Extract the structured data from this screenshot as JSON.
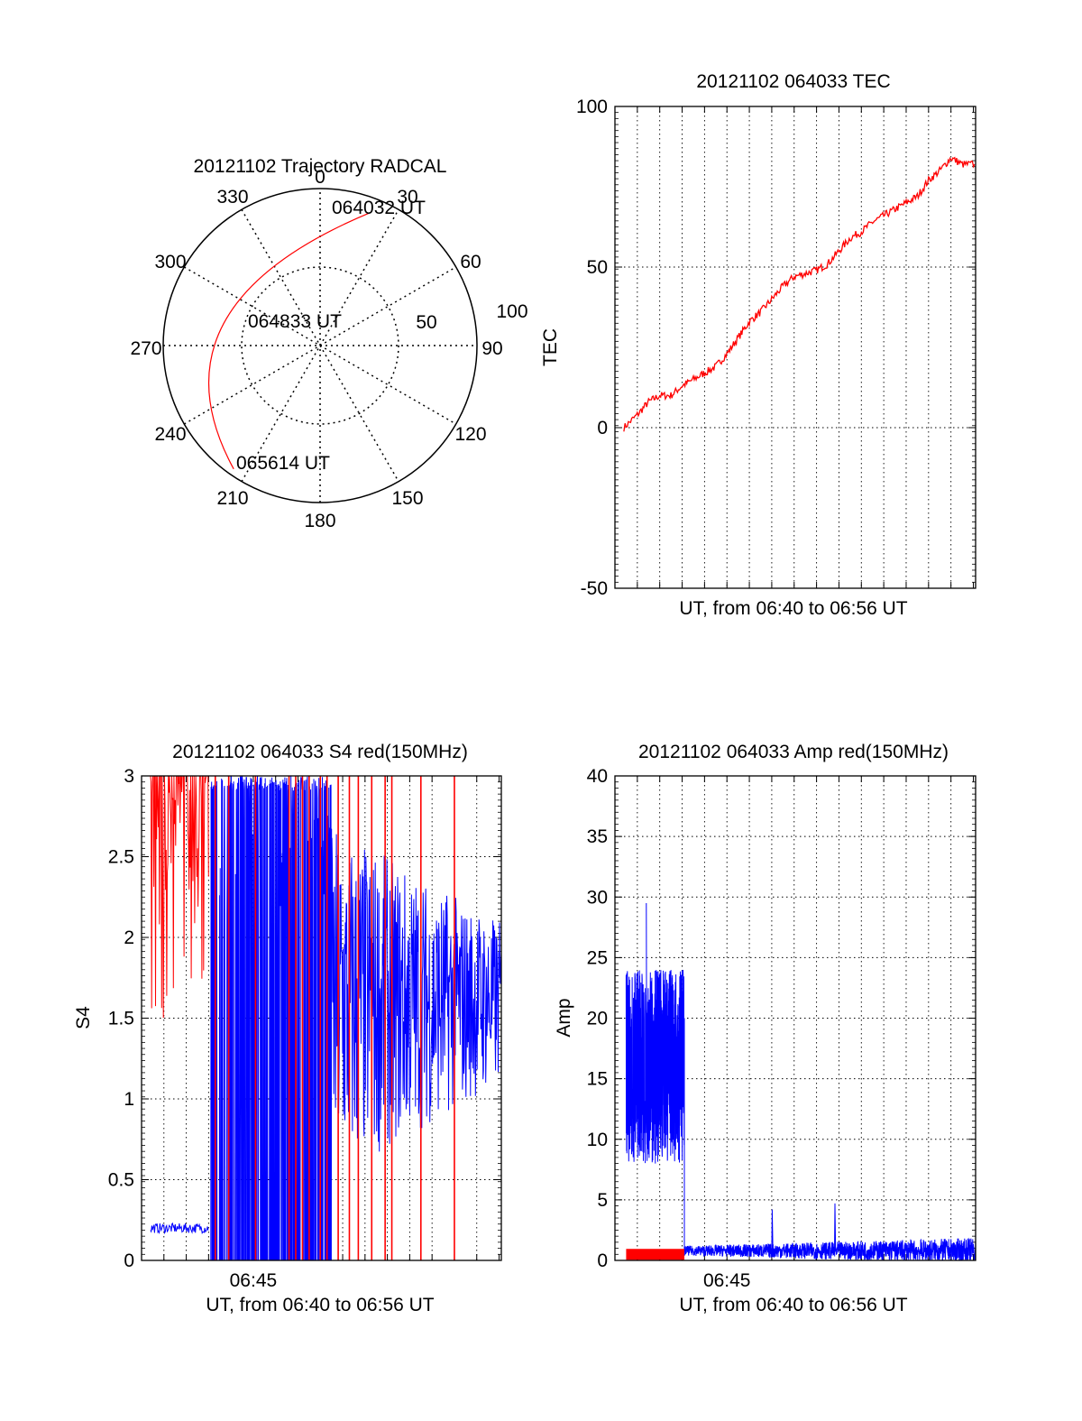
{
  "colors": {
    "red": "#ff0000",
    "blue": "#0000ff",
    "axis": "#000000",
    "grid": "#000000"
  },
  "chart_data": [
    {
      "id": "trajectory",
      "type": "polar",
      "title": "20121102 Trajectory RADCAL",
      "angle_labels": [
        "0",
        "30",
        "60",
        "90",
        "120",
        "150",
        "180",
        "210",
        "240",
        "270",
        "300",
        "330"
      ],
      "radial_labels": [
        "50",
        "100"
      ],
      "radial_max": 100,
      "track": {
        "az_start": 21,
        "r_start": 91,
        "az_end": 215,
        "r_end": 96,
        "az_mid": 283,
        "r_mid": 63
      },
      "annotations": [
        "064032 UT",
        "064833 UT",
        "065614 UT"
      ]
    },
    {
      "id": "tec",
      "type": "line",
      "title": "20121102 064033 TEC",
      "xlabel": "UT, from 06:40 to 06:56 UT",
      "ylabel": "TEC",
      "xlim": [
        0,
        16.1
      ],
      "ylim": [
        -50,
        100
      ],
      "yticks": [
        "-50",
        "0",
        "50",
        "100"
      ],
      "grid": true,
      "series": [
        {
          "color": "red",
          "points": [
            [
              0.4,
              0
            ],
            [
              1,
              4
            ],
            [
              1.5,
              8
            ],
            [
              2,
              10
            ],
            [
              2.5,
              10
            ],
            [
              3,
              13
            ],
            [
              3.5,
              15
            ],
            [
              4,
              17
            ],
            [
              4.5,
              19
            ],
            [
              5,
              23
            ],
            [
              5.5,
              28
            ],
            [
              6,
              33
            ],
            [
              6.5,
              36
            ],
            [
              7,
              40
            ],
            [
              7.5,
              44
            ],
            [
              8,
              47
            ],
            [
              8.5,
              48
            ],
            [
              9,
              49
            ],
            [
              9.5,
              51
            ],
            [
              10,
              55
            ],
            [
              10.5,
              59
            ],
            [
              11,
              61
            ],
            [
              11.5,
              64
            ],
            [
              12,
              66
            ],
            [
              12.5,
              68
            ],
            [
              13,
              70
            ],
            [
              13.5,
              72
            ],
            [
              14,
              77
            ],
            [
              14.5,
              80
            ],
            [
              15,
              84
            ],
            [
              15.5,
              82
            ],
            [
              16.05,
              82
            ]
          ]
        }
      ]
    },
    {
      "id": "s4",
      "type": "line",
      "title": "20121102 064033 S4 red(150MHz)",
      "xlabel": "UT, from 06:40 to 06:56 UT",
      "ylabel": "S4",
      "xlim": [
        0,
        16.1
      ],
      "ylim": [
        0,
        3
      ],
      "yticks": [
        "0",
        "0.5",
        "1",
        "1.5",
        "2",
        "2.5",
        "3"
      ],
      "xtick_labels": [
        {
          "x": 5,
          "label": "06:45"
        }
      ],
      "grid": true,
      "series": [
        {
          "color": "red",
          "name": "",
          "segment": "early",
          "x_range": [
            0.4,
            3
          ],
          "low": [
            1.5,
            2.2
          ],
          "high": 3
        },
        {
          "color": "blue",
          "name": "",
          "segment": "early",
          "x_range": [
            0.4,
            3
          ],
          "level": 0.2
        },
        {
          "color": "blue",
          "name": "",
          "segment": "dense",
          "x_range": [
            3.1,
            8.5
          ],
          "low": 0,
          "high": 3
        },
        {
          "color": "blue",
          "name": "",
          "segment": "late",
          "x_range": [
            8.5,
            16.1
          ],
          "mean": 1.6,
          "spread": 0.5
        },
        {
          "color": "red",
          "name": "",
          "segment": "spikes",
          "x": [
            3.3,
            3.9,
            5.1,
            6.6,
            6.9,
            7.2,
            7.5,
            8.0,
            8.3,
            8.8,
            9.3,
            9.7,
            10.3,
            10.9,
            11.2,
            12.5,
            14.0
          ]
        }
      ]
    },
    {
      "id": "amp",
      "type": "line",
      "title": "20121102 064033 Amp red(150MHz)",
      "xlabel": "UT, from 06:40 to 06:56 UT",
      "ylabel": "Amp",
      "xlim": [
        0,
        16.1
      ],
      "ylim": [
        0,
        40
      ],
      "yticks": [
        "0",
        "5",
        "10",
        "15",
        "20",
        "25",
        "30",
        "35",
        "40"
      ],
      "xtick_labels": [
        {
          "x": 5,
          "label": "06:45"
        }
      ],
      "grid": true,
      "series": [
        {
          "color": "blue",
          "segment": "burst",
          "x_range": [
            0.5,
            3.1
          ],
          "low": 8,
          "high": 24,
          "peak": 29.5
        },
        {
          "color": "red",
          "segment": "low",
          "x_range": [
            0.5,
            3.1
          ],
          "level": 0.5
        },
        {
          "color": "blue",
          "segment": "noise",
          "x_range": [
            3.1,
            16.1
          ],
          "level": 0.8,
          "spikes": [
            [
              7,
              4.2
            ],
            [
              9.8,
              4.7
            ]
          ]
        }
      ]
    }
  ]
}
